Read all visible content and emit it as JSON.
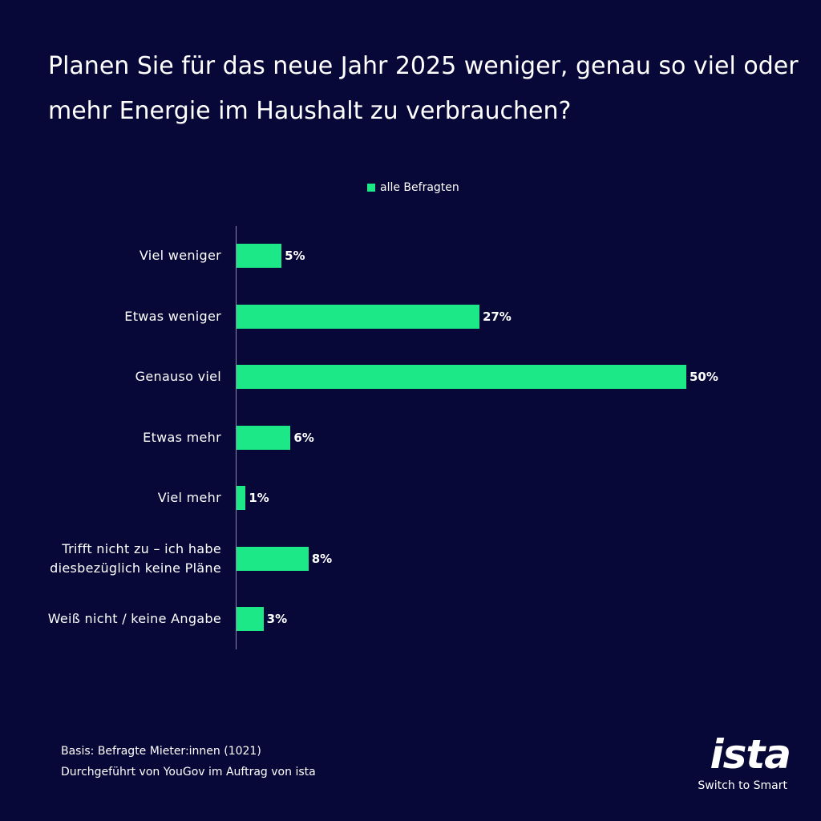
{
  "chart_data": {
    "type": "bar",
    "orientation": "horizontal",
    "title": "Planen Sie für das neue Jahr 2025 weniger, genau so viel oder mehr Energie im Haushalt zu verbrauchen?",
    "categories": [
      "Viel weniger",
      "Etwas weniger",
      "Genauso viel",
      "Etwas mehr",
      "Viel mehr",
      "Trifft nicht zu – ich habe diesbezüglich keine Pläne",
      "Weiß nicht / keine Angabe"
    ],
    "series": [
      {
        "name": "alle Befragten",
        "color": "#1de887",
        "values": [
          5,
          27,
          50,
          6,
          1,
          8,
          3
        ],
        "value_labels": [
          "5%",
          "27%",
          "50%",
          "6%",
          "1%",
          "8%",
          "3%"
        ]
      }
    ],
    "footnotes": [
      "Basis: Befragte Mieter:innen (1021)",
      "Durchgeführt von YouGov im Auftrag von ista"
    ],
    "logo": {
      "name": "ista",
      "tagline": "Switch to Smart"
    }
  }
}
